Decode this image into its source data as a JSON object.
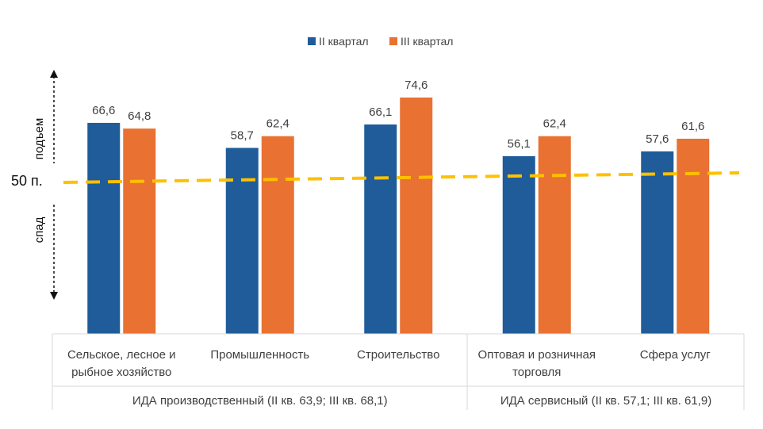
{
  "chart_data": {
    "type": "bar",
    "series": [
      {
        "name": "II квартал",
        "color": "#1F5C99",
        "values": [
          66.6,
          58.7,
          66.1,
          56.1,
          57.6
        ],
        "labels": [
          "66,6",
          "58,7",
          "66,1",
          "56,1",
          "57,6"
        ]
      },
      {
        "name": "III квартал",
        "color": "#E97132",
        "values": [
          64.8,
          62.4,
          74.6,
          62.4,
          61.6
        ],
        "labels": [
          "64,8",
          "62,4",
          "74,6",
          "62,4",
          "61,6"
        ]
      }
    ],
    "categories": [
      [
        "Сельское, лесное и",
        "рыбное хозяйство"
      ],
      [
        "Промышленность"
      ],
      [
        "Строительство"
      ],
      [
        "Оптовая и розничная",
        "торговля"
      ],
      [
        "Сфера услуг"
      ]
    ],
    "groups": [
      {
        "label": "ИДА производственный (II кв. 63,9; III кв. 68,1)",
        "span": [
          0,
          2
        ]
      },
      {
        "label": "ИДА сервисный (II кв. 57,1; III кв. 61,9)",
        "span": [
          3,
          4
        ]
      }
    ],
    "ylim": [
      0,
      80
    ],
    "threshold": {
      "value": 50,
      "label": "50 п.",
      "color": "#FFC000"
    },
    "axis_annotations": {
      "up": "подъем",
      "down": "спад"
    },
    "legend_position": "top-center"
  }
}
